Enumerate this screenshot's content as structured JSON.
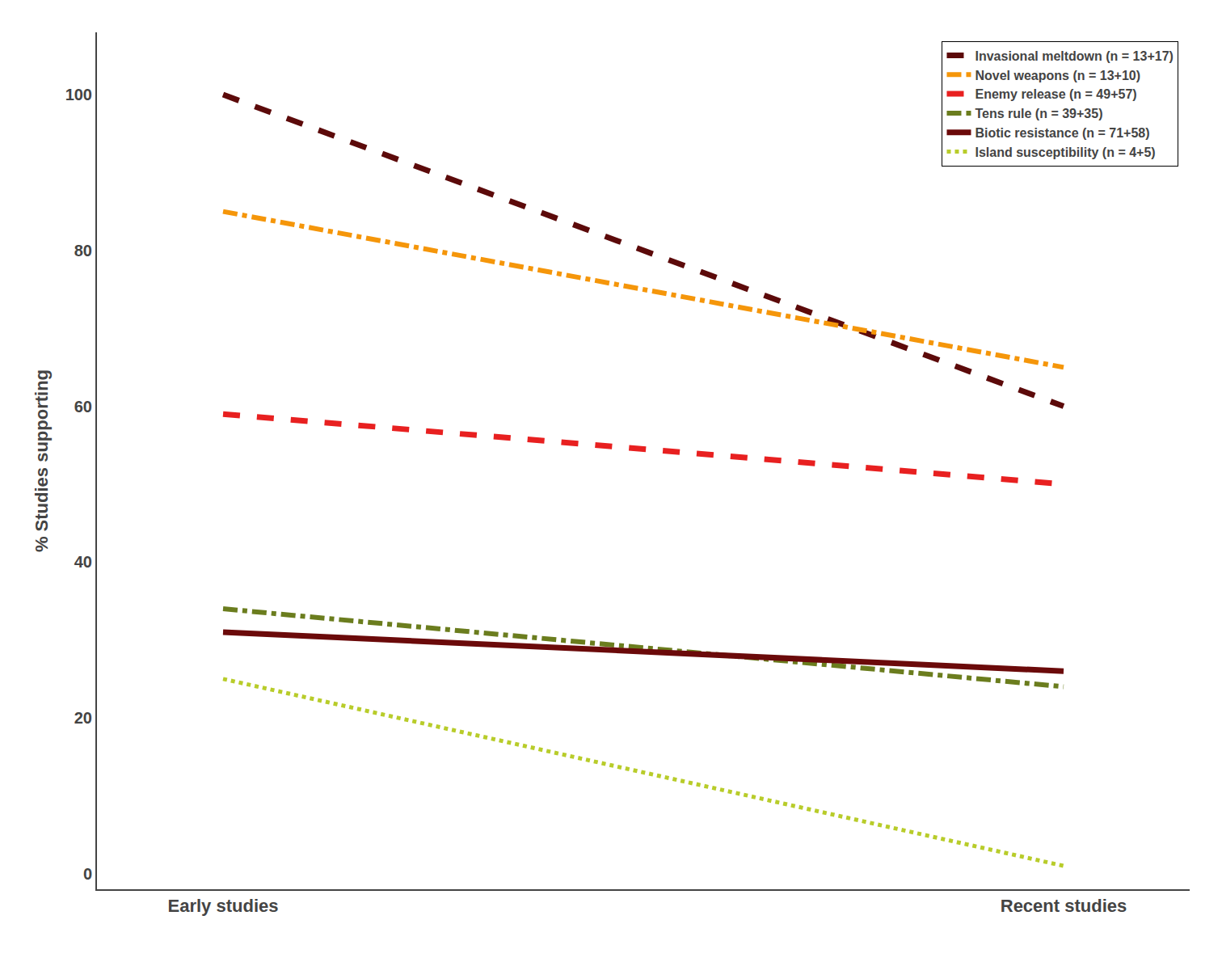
{
  "chart_data": {
    "type": "line",
    "categories": [
      "Early studies",
      "Recent studies"
    ],
    "y_label": "% Studies supporting",
    "ylim": [
      -2,
      108
    ],
    "yticks": [
      0,
      20,
      40,
      60,
      80,
      100
    ],
    "grid": false,
    "legend": "upper right",
    "series": [
      {
        "name": "Invasional meltdown (n = 13+17)",
        "color": "#5c0a0a",
        "line_style": "dashed",
        "values": [
          100,
          60
        ]
      },
      {
        "name": "Novel weapons (n = 13+10)",
        "color": "#f5960a",
        "line_style": "dashdot",
        "values": [
          85,
          65
        ]
      },
      {
        "name": "Enemy release (n = 49+57)",
        "color": "#e82020",
        "line_style": "dashed",
        "values": [
          59,
          50
        ]
      },
      {
        "name": "Tens rule (n = 39+35)",
        "color": "#6b7d1e",
        "line_style": "dashdot",
        "values": [
          34,
          24
        ]
      },
      {
        "name": "Biotic resistance (n = 71+58)",
        "color": "#6b0a0a",
        "line_style": "solid",
        "values": [
          31,
          26
        ]
      },
      {
        "name": "Island susceptibility (n = 4+5)",
        "color": "#b8cc2a",
        "line_style": "dotted",
        "values": [
          25,
          1
        ]
      }
    ]
  }
}
